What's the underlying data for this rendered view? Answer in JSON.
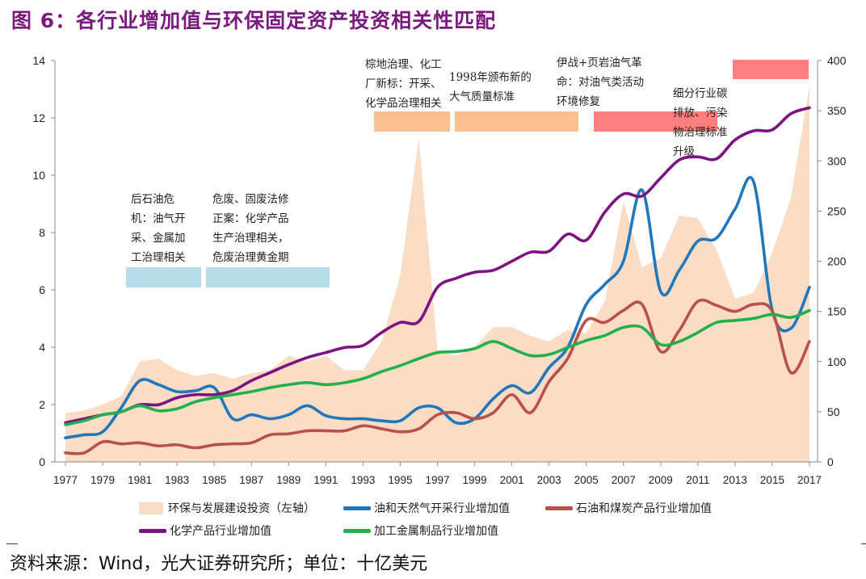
{
  "title": "图 6：各行业增加值与环保固定资产投资相关性匹配",
  "source": "资料来源：Wind，光大证券研究所；单位：十亿美元",
  "annotations": [
    {
      "text": "后石油危\n机：油气开\n采、金属加\n工治理相关",
      "color": "#B7DDE8"
    },
    {
      "text": "危废、固废法修\n正案：化学产品\n生产治理相关，\n危废治理黄金期",
      "color": "#B7DDE8"
    },
    {
      "text": "棕地治理、化工\n厂新标：开采、\n化学品治理相关",
      "color": "#FAC090"
    },
    {
      "text": "1998年颁布新的\n大气质量标准",
      "color": "#FAC090"
    },
    {
      "text": "伊战+页岩油气革\n命：对油气类活动\n环境修复",
      "color": "#FF7F7F"
    },
    {
      "text": "细分行业碳\n排放、污染\n物治理标准\n升级",
      "color": "#FF7F7F"
    }
  ],
  "chart_data": {
    "type": "line",
    "title": "图 6：各行业增加值与环保固定资产投资相关性匹配",
    "xlabel": "",
    "ylabel_left": "",
    "ylabel_right": "",
    "x": [
      1977,
      1978,
      1979,
      1980,
      1981,
      1982,
      1983,
      1984,
      1985,
      1986,
      1987,
      1988,
      1989,
      1990,
      1991,
      1992,
      1993,
      1994,
      1995,
      1996,
      1997,
      1998,
      1999,
      2000,
      2001,
      2002,
      2003,
      2004,
      2005,
      2006,
      2007,
      2008,
      2009,
      2010,
      2011,
      2012,
      2013,
      2014,
      2015,
      2016,
      2017
    ],
    "x_tick_labels": [
      "1977",
      "1979",
      "1981",
      "1983",
      "1985",
      "1987",
      "1989",
      "1991",
      "1993",
      "1995",
      "1997",
      "1999",
      "2001",
      "2003",
      "2005",
      "2007",
      "2009",
      "2011",
      "2013",
      "2015",
      "2017"
    ],
    "ylim_left": [
      0,
      14
    ],
    "yticks_left": [
      "0",
      "2",
      "4",
      "6",
      "8",
      "10",
      "12",
      "14"
    ],
    "ylim_right": [
      0,
      400
    ],
    "yticks_right": [
      "0",
      "50",
      "100",
      "150",
      "200",
      "250",
      "300",
      "350",
      "400"
    ],
    "grid": false,
    "legend_position": "bottom",
    "series": [
      {
        "name": "环保与发展建设投资（左轴）",
        "type": "area",
        "axis": "left",
        "color": "#FBDCC5",
        "values": [
          1.7,
          1.8,
          2.0,
          2.3,
          3.5,
          3.6,
          3.2,
          3.0,
          3.1,
          2.9,
          3.1,
          3.2,
          3.7,
          3.5,
          3.7,
          3.2,
          3.2,
          4.2,
          6.5,
          11.3,
          3.9,
          3.7,
          4.0,
          4.7,
          4.7,
          4.4,
          4.2,
          4.6,
          4.5,
          5.6,
          9.1,
          6.8,
          7.1,
          8.6,
          8.5,
          7.4,
          5.7,
          5.9,
          7.3,
          9.2,
          13.1
        ]
      },
      {
        "name": "油和天然气开采行业增加值",
        "type": "line",
        "axis": "right",
        "color": "#1F77BC",
        "values": [
          24,
          27,
          30,
          54,
          81,
          77,
          70,
          71,
          74,
          43,
          47,
          43,
          47,
          56,
          46,
          43,
          43,
          41,
          41,
          54,
          54,
          39,
          43,
          63,
          76,
          69,
          94,
          114,
          157,
          177,
          200,
          271,
          170,
          191,
          220,
          223,
          252,
          279,
          151,
          133,
          174
        ]
      },
      {
        "name": "石油和煤炭产品行业增加值",
        "type": "line",
        "axis": "right",
        "color": "#B9514B",
        "values": [
          9,
          9,
          20,
          18,
          19,
          16,
          17,
          14,
          17,
          18,
          19,
          27,
          28,
          31,
          31,
          31,
          36,
          33,
          30,
          33,
          47,
          49,
          43,
          49,
          67,
          49,
          80,
          103,
          141,
          139,
          151,
          157,
          110,
          131,
          160,
          156,
          150,
          157,
          150,
          89,
          120
        ]
      },
      {
        "name": "化学产品行业增加值",
        "type": "line",
        "axis": "right",
        "color": "#7B1480",
        "values": [
          39,
          43,
          47,
          50,
          57,
          57,
          64,
          67,
          67,
          71,
          81,
          89,
          97,
          104,
          109,
          114,
          116,
          129,
          139,
          140,
          174,
          183,
          189,
          191,
          200,
          209,
          210,
          227,
          221,
          249,
          267,
          265,
          283,
          301,
          304,
          302,
          321,
          330,
          331,
          347,
          353
        ]
      },
      {
        "name": "加工金属制品行业增加值",
        "type": "line",
        "axis": "right",
        "color": "#22B04B",
        "values": [
          37,
          41,
          47,
          50,
          56,
          51,
          53,
          60,
          64,
          67,
          70,
          74,
          77,
          79,
          77,
          79,
          83,
          90,
          96,
          103,
          109,
          110,
          113,
          120,
          113,
          106,
          107,
          114,
          121,
          126,
          134,
          134,
          117,
          120,
          129,
          139,
          141,
          143,
          147,
          144,
          151
        ]
      }
    ]
  }
}
